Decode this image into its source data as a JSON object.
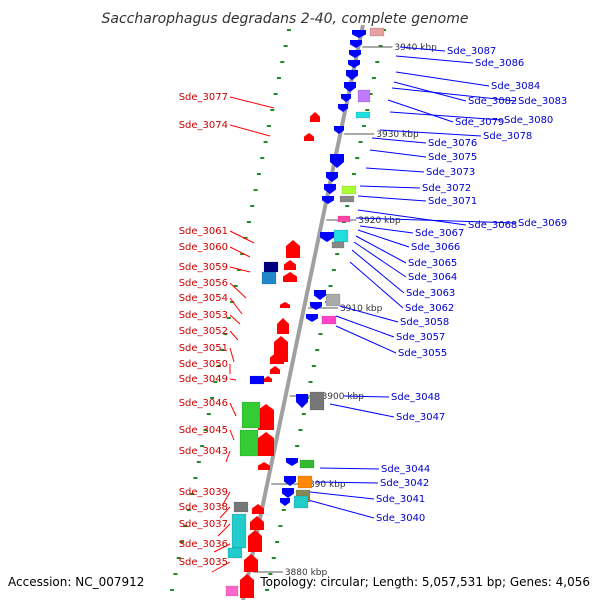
{
  "title": "Saccharophagus degradans 2-40, complete genome",
  "footer": {
    "accession": "Accession: NC_007912",
    "summary": "Topology: circular; Length: 5,057,531 bp; Genes: 4,056"
  },
  "colors": {
    "forward_strand": "#ff0000",
    "reverse_strand": "#0000ff",
    "label_forward": "#cc0000",
    "label_reverse": "#0000cc",
    "backbone": "#999999",
    "gc_tick": "#228b22"
  },
  "kbp_markers": [
    "3940 kbp",
    "3930 kbp",
    "3920 kbp",
    "3910 kbp",
    "3900 kbp",
    "3890 kbp",
    "3880 kbp"
  ],
  "left_labels": [
    "Sde_3077",
    "Sde_3074",
    "Sde_3061",
    "Sde_3060",
    "Sde_3059",
    "Sde_3056",
    "Sde_3054",
    "Sde_3053",
    "Sde_3052",
    "Sde_3051",
    "Sde_3050",
    "Sde_3049",
    "Sde_3046",
    "Sde_3045",
    "Sde_3043",
    "Sde_3039",
    "Sde_3038",
    "Sde_3037",
    "Sde_3036",
    "Sde_3035"
  ],
  "right_labels": [
    "Sde_3087",
    "Sde_3086",
    "Sde_3084",
    "Sde_3082",
    "Sde_3083",
    "Sde_3079",
    "Sde_3080",
    "Sde_3078",
    "Sde_3076",
    "Sde_3075",
    "Sde_3073",
    "Sde_3072",
    "Sde_3071",
    "Sde_3068",
    "Sde_3069",
    "Sde_3067",
    "Sde_3066",
    "Sde_3065",
    "Sde_3064",
    "Sde_3063",
    "Sde_3062",
    "Sde_3058",
    "Sde_3057",
    "Sde_3055",
    "Sde_3048",
    "Sde_3047",
    "Sde_3044",
    "Sde_3042",
    "Sde_3041",
    "Sde_3040"
  ]
}
